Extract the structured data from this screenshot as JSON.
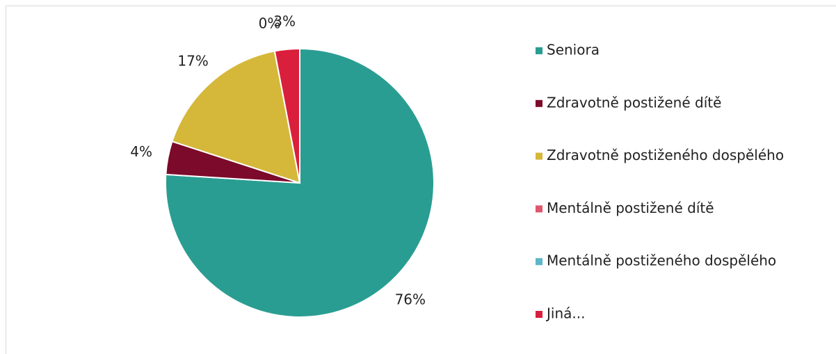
{
  "chart_data": {
    "type": "pie",
    "categories": [
      "Seniora",
      "Zdravotně postižené dítě",
      "Zdravotně postiženého dospělého",
      "Mentálně postižené dítě",
      "Mentálně postiženého dospělého",
      "Jiná..."
    ],
    "values": [
      76,
      4,
      17,
      0,
      0,
      3
    ],
    "value_labels": [
      "76%",
      "4%",
      "17%",
      "0%",
      null,
      "3%"
    ],
    "colors": [
      "#2a9d92",
      "#7c0a2a",
      "#d5b83a",
      "#e0566c",
      "#5db7c8",
      "#d91f3c"
    ],
    "legend": "right"
  }
}
